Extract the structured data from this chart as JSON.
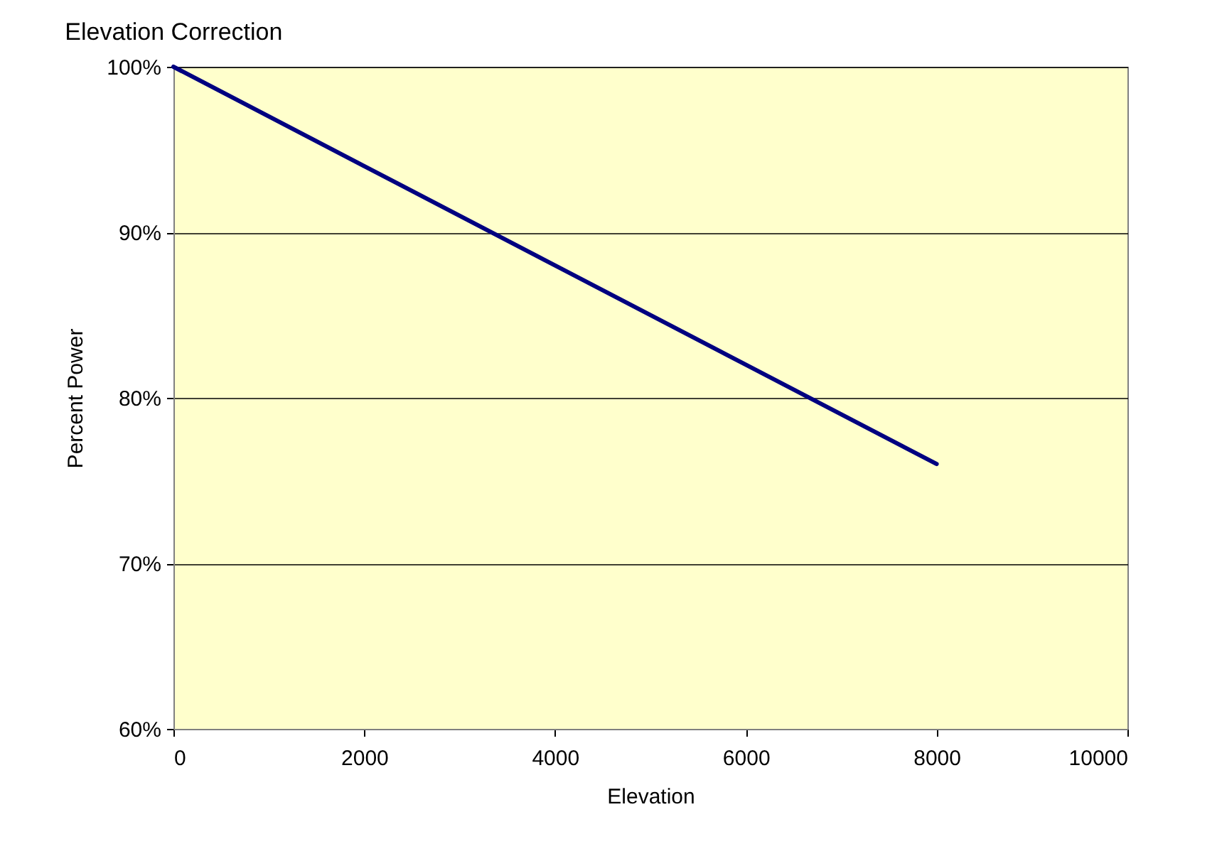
{
  "chart_data": {
    "type": "line",
    "title": "Elevation Correction",
    "xlabel": "Elevation",
    "ylabel": "Percent Power",
    "x": [
      0,
      2000,
      4000,
      6000,
      8000
    ],
    "series": [
      {
        "color": "#000080",
        "values": [
          100,
          94,
          88,
          82,
          76
        ]
      }
    ],
    "xlim": [
      0,
      10000
    ],
    "xticks": [
      0,
      2000,
      4000,
      6000,
      8000,
      10000
    ],
    "ylim": [
      60,
      100
    ],
    "yticks": [
      {
        "value": 60,
        "label": "60%"
      },
      {
        "value": 70,
        "label": "70%"
      },
      {
        "value": 80,
        "label": "80%"
      },
      {
        "value": 90,
        "label": "90%"
      },
      {
        "value": 100,
        "label": "100%"
      }
    ],
    "grid": "y",
    "marker": "none",
    "line_style": "solid"
  }
}
